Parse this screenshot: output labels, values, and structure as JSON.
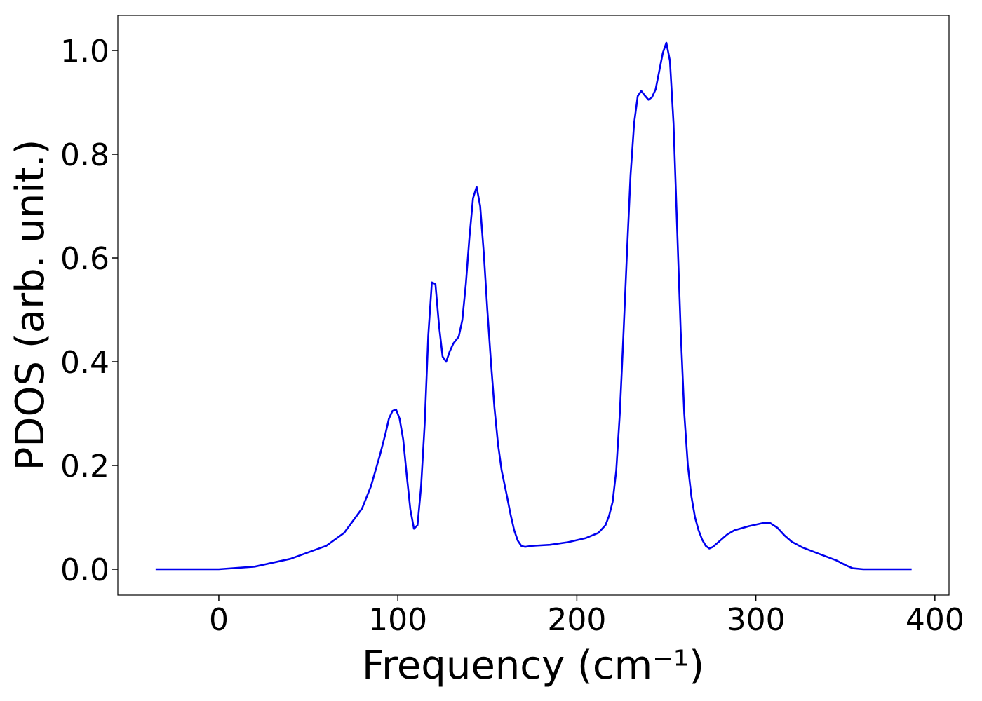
{
  "chart_data": {
    "type": "line",
    "x_label": "Frequency (cm⁻¹)",
    "y_label": "PDOS (arb. unit.)",
    "x": [
      -35.3,
      0,
      20,
      40,
      60,
      70,
      80,
      85,
      90,
      93,
      95,
      97,
      99,
      101,
      103,
      105,
      107,
      109,
      111,
      113,
      115,
      117,
      119,
      121,
      123,
      125,
      127,
      129,
      131,
      134,
      136,
      138,
      140,
      142,
      144,
      146,
      148,
      150,
      152,
      154,
      156,
      158,
      161,
      163,
      165,
      167,
      169,
      171,
      175,
      185,
      195,
      205,
      212,
      216,
      218,
      220,
      222,
      224,
      226,
      228,
      230,
      232,
      234,
      236,
      238,
      240,
      242,
      244,
      246,
      248,
      250,
      252,
      254,
      256,
      258,
      260,
      262,
      264,
      266,
      268,
      270,
      272,
      274,
      276,
      280,
      284,
      288,
      296,
      304,
      308,
      312,
      316,
      320,
      326,
      335,
      345,
      350,
      354,
      360,
      387
    ],
    "series": [
      {
        "name": "PDOS",
        "color": "#0000ee",
        "values": [
          0,
          0,
          0.005,
          0.02,
          0.045,
          0.07,
          0.117,
          0.16,
          0.22,
          0.26,
          0.29,
          0.305,
          0.308,
          0.29,
          0.25,
          0.18,
          0.115,
          0.078,
          0.085,
          0.16,
          0.28,
          0.45,
          0.553,
          0.55,
          0.47,
          0.41,
          0.4,
          0.42,
          0.435,
          0.448,
          0.48,
          0.55,
          0.64,
          0.715,
          0.737,
          0.7,
          0.61,
          0.5,
          0.4,
          0.31,
          0.24,
          0.19,
          0.14,
          0.105,
          0.075,
          0.055,
          0.045,
          0.043,
          0.045,
          0.047,
          0.052,
          0.06,
          0.07,
          0.085,
          0.103,
          0.13,
          0.19,
          0.3,
          0.45,
          0.61,
          0.76,
          0.86,
          0.912,
          0.922,
          0.913,
          0.905,
          0.91,
          0.925,
          0.96,
          0.995,
          1.015,
          0.98,
          0.86,
          0.66,
          0.46,
          0.3,
          0.2,
          0.14,
          0.1,
          0.075,
          0.057,
          0.045,
          0.04,
          0.043,
          0.055,
          0.067,
          0.075,
          0.083,
          0.089,
          0.089,
          0.08,
          0.065,
          0.053,
          0.042,
          0.03,
          0.017,
          0.008,
          0.002,
          0,
          0
        ]
      }
    ],
    "xlim": [
      -56.4,
      407.9
    ],
    "ylim": [
      -0.05,
      1.0676
    ],
    "xticks": [
      0,
      100,
      200,
      300,
      400
    ],
    "yticks": [
      {
        "value": 0,
        "label": "0.0"
      },
      0.2,
      0.4,
      0.6,
      0.8,
      {
        "value": 1,
        "label": "1.0"
      }
    ]
  }
}
